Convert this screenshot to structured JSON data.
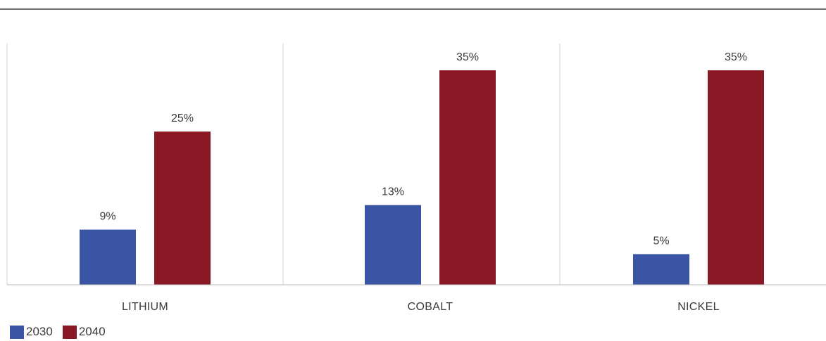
{
  "colors": {
    "series_2030": "#3955a3",
    "series_2040": "#8a1925",
    "divider": "#d0d0d0",
    "axis": "#b8b8b8"
  },
  "legend": {
    "items": [
      {
        "label": "2030",
        "color": "#3955a3"
      },
      {
        "label": "2040",
        "color": "#8a1925"
      }
    ]
  },
  "chart_data": {
    "type": "bar",
    "title": "",
    "xlabel": "",
    "ylabel": "",
    "ylim": [
      0,
      39.5
    ],
    "grid": false,
    "legend_position": "bottom-left",
    "categories": [
      "LITHIUM",
      "COBALT",
      "NICKEL"
    ],
    "series": [
      {
        "name": "2030",
        "values": [
          9,
          13,
          5
        ],
        "labels": [
          "9%",
          "13%",
          "5%"
        ]
      },
      {
        "name": "2040",
        "values": [
          25,
          35,
          35
        ],
        "labels": [
          "25%",
          "35%",
          "35%"
        ]
      }
    ]
  }
}
